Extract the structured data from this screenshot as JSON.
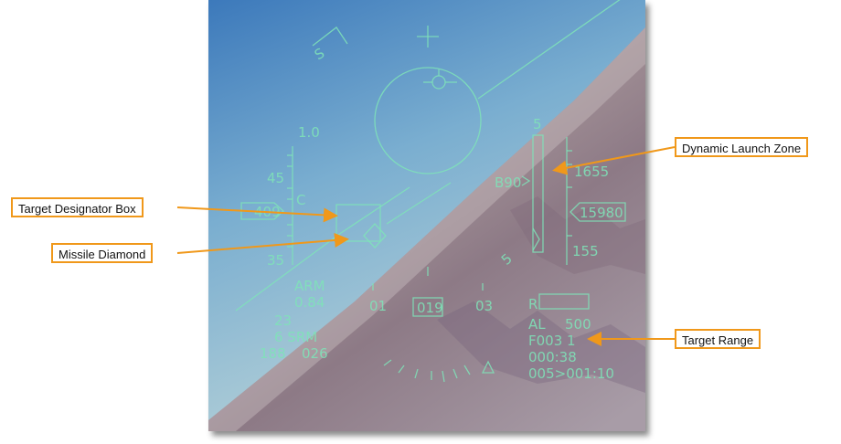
{
  "callouts": {
    "target_designator_box": "Target Designator Box",
    "missile_diamond": "Missile Diamond",
    "dynamic_launch_zone": "Dynamic Launch Zone",
    "target_range": "Target Range"
  },
  "hud": {
    "steer_symbol": "S",
    "gload": "1.0",
    "speed_45": "45",
    "speed_c": "C",
    "airspeed_box": "409",
    "speed_35": "35",
    "dlz_top": "5",
    "dlz_range": "B90",
    "dlz_bottom": "5",
    "alt_1655": "1655",
    "alt_box": "15980",
    "alt_155": "155",
    "master_arm": "ARM",
    "mach": "0.84",
    "max_g": "23",
    "weapon": "6 SRM",
    "weapon_data_left": "188",
    "weapon_data_right": "026",
    "heading_01": "01",
    "heading_box": "019",
    "heading_03": "03",
    "radar_alt_mark": "R",
    "al_label": "AL",
    "al_value": "500",
    "range_line": "F003 1",
    "time_1": "000:38",
    "time_2": "005>001:10"
  },
  "colors": {
    "hud_symbology": "#7fe3b8",
    "callout_border": "#f0981a",
    "sky_top": "#3f7fc0",
    "terrain": "#9a8a98"
  }
}
